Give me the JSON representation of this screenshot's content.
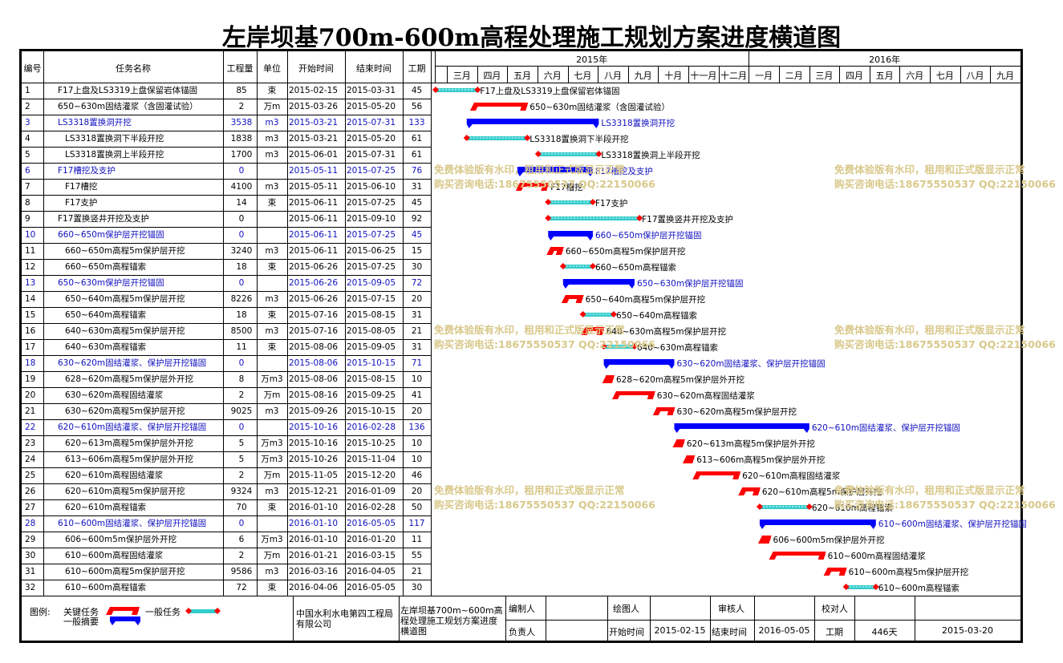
{
  "title": "左岸坝基700m-600m高程处理施工规划方案进度横道图",
  "columns": {
    "no": "编号",
    "name": "任务名称",
    "qty": "工程量",
    "unit": "单位",
    "start": "开始时间",
    "end": "结束时间",
    "dur": "工期"
  },
  "years": [
    "2015年",
    "2016年"
  ],
  "months": [
    "三月",
    "四月",
    "五月",
    "六月",
    "七月",
    "八月",
    "九月",
    "十月",
    "十一月",
    "十二月",
    "一月",
    "二月",
    "三月",
    "四月",
    "五月",
    "六月",
    "七月",
    "八月",
    "九月"
  ],
  "watermark": {
    "line1": "免费体验版有水印，租用和正式版显示正常",
    "line2": "购买咨询电话:18675550537 QQ:22150066"
  },
  "colors": {
    "critical": "#ff0000",
    "normal": "#33cccc",
    "summary": "#0000ff",
    "milestone": "#ff0000",
    "summary_text": "#1010c0"
  },
  "chart_data": {
    "type": "gantt",
    "x_axis_start": "2015-03-01",
    "x_axis_end": "2016-09-30",
    "tasks": [
      {
        "no": "1",
        "name": "F17上盘及LS3319上盘保留岩体锚固",
        "qty": "85",
        "unit": "束",
        "start": "2015-02-15",
        "end": "2015-03-31",
        "dur": "45",
        "kind": "normal",
        "indent": 0
      },
      {
        "no": "2",
        "name": "650~630m固结灌浆（含固灌试验）",
        "qty": "2",
        "unit": "万m",
        "start": "2015-03-26",
        "end": "2015-05-20",
        "dur": "56",
        "kind": "critical",
        "indent": 0
      },
      {
        "no": "3",
        "name": "LS3318置换洞开挖",
        "qty": "3538",
        "unit": "m3",
        "start": "2015-03-21",
        "end": "2015-07-31",
        "dur": "133",
        "kind": "summary",
        "indent": 0
      },
      {
        "no": "4",
        "name": "LS3318置换洞下半段开挖",
        "qty": "1838",
        "unit": "m3",
        "start": "2015-03-21",
        "end": "2015-05-20",
        "dur": "61",
        "kind": "normal",
        "indent": 1
      },
      {
        "no": "5",
        "name": "LS3318置换洞上半段开挖",
        "qty": "1700",
        "unit": "m3",
        "start": "2015-06-01",
        "end": "2015-07-31",
        "dur": "61",
        "kind": "normal",
        "indent": 1
      },
      {
        "no": "6",
        "name": "F17槽挖及支护",
        "qty": "0",
        "unit": "",
        "start": "2015-05-11",
        "end": "2015-07-25",
        "dur": "76",
        "kind": "summary",
        "indent": 0
      },
      {
        "no": "7",
        "name": "F17槽挖",
        "qty": "4100",
        "unit": "m3",
        "start": "2015-05-11",
        "end": "2015-06-10",
        "dur": "31",
        "kind": "critical",
        "indent": 1
      },
      {
        "no": "8",
        "name": "F17支护",
        "qty": "14",
        "unit": "束",
        "start": "2015-06-11",
        "end": "2015-07-25",
        "dur": "45",
        "kind": "normal",
        "indent": 1
      },
      {
        "no": "9",
        "name": "F17置换竖井开挖及支护",
        "qty": "0",
        "unit": "",
        "start": "2015-06-11",
        "end": "2015-09-10",
        "dur": "92",
        "kind": "normal",
        "indent": 0
      },
      {
        "no": "10",
        "name": "660~650m保护层开挖锚固",
        "qty": "0",
        "unit": "",
        "start": "2015-06-11",
        "end": "2015-07-25",
        "dur": "45",
        "kind": "summary",
        "indent": 0
      },
      {
        "no": "11",
        "name": "660~650m高程5m保护层开挖",
        "qty": "3240",
        "unit": "m3",
        "start": "2015-06-11",
        "end": "2015-06-25",
        "dur": "15",
        "kind": "critical",
        "indent": 1
      },
      {
        "no": "12",
        "name": "660~650m高程锚索",
        "qty": "18",
        "unit": "束",
        "start": "2015-06-26",
        "end": "2015-07-25",
        "dur": "30",
        "kind": "normal",
        "indent": 1
      },
      {
        "no": "13",
        "name": "650~630m保护层开挖锚固",
        "qty": "0",
        "unit": "",
        "start": "2015-06-26",
        "end": "2015-09-05",
        "dur": "72",
        "kind": "summary",
        "indent": 0
      },
      {
        "no": "14",
        "name": "650~640m高程5m保护层开挖",
        "qty": "8226",
        "unit": "m3",
        "start": "2015-06-26",
        "end": "2015-07-15",
        "dur": "20",
        "kind": "critical",
        "indent": 1
      },
      {
        "no": "15",
        "name": "650~640m高程锚索",
        "qty": "18",
        "unit": "束",
        "start": "2015-07-16",
        "end": "2015-08-15",
        "dur": "31",
        "kind": "normal",
        "indent": 1
      },
      {
        "no": "16",
        "name": "640~630m高程5m保护层开挖",
        "qty": "8500",
        "unit": "m3",
        "start": "2015-07-16",
        "end": "2015-08-05",
        "dur": "21",
        "kind": "critical",
        "indent": 1
      },
      {
        "no": "17",
        "name": "640~630m高程锚索",
        "qty": "11",
        "unit": "束",
        "start": "2015-08-06",
        "end": "2015-09-05",
        "dur": "31",
        "kind": "normal",
        "indent": 1
      },
      {
        "no": "18",
        "name": "630~620m固结灌浆、保护层开挖锚固",
        "qty": "0",
        "unit": "",
        "start": "2015-08-06",
        "end": "2015-10-15",
        "dur": "71",
        "kind": "summary",
        "indent": 0
      },
      {
        "no": "19",
        "name": "628~620m高程5m保护层外开挖",
        "qty": "8",
        "unit": "万m3",
        "start": "2015-08-06",
        "end": "2015-08-15",
        "dur": "10",
        "kind": "critical",
        "indent": 1
      },
      {
        "no": "20",
        "name": "630~620m高程固结灌浆",
        "qty": "2",
        "unit": "万m",
        "start": "2015-08-16",
        "end": "2015-09-25",
        "dur": "41",
        "kind": "critical",
        "indent": 1
      },
      {
        "no": "21",
        "name": "630~620m高程5m保护层开挖",
        "qty": "9025",
        "unit": "m3",
        "start": "2015-09-26",
        "end": "2015-10-15",
        "dur": "20",
        "kind": "critical",
        "indent": 1
      },
      {
        "no": "22",
        "name": "620~610m固结灌浆、保护层开挖锚固",
        "qty": "0",
        "unit": "",
        "start": "2015-10-16",
        "end": "2016-02-28",
        "dur": "136",
        "kind": "summary",
        "indent": 0
      },
      {
        "no": "23",
        "name": "620~613m高程5m保护层外开挖",
        "qty": "5",
        "unit": "万m3",
        "start": "2015-10-16",
        "end": "2015-10-25",
        "dur": "10",
        "kind": "critical",
        "indent": 1
      },
      {
        "no": "24",
        "name": "613~606m高程5m保护层外开挖",
        "qty": "5",
        "unit": "万m3",
        "start": "2015-10-26",
        "end": "2015-11-04",
        "dur": "10",
        "kind": "critical",
        "indent": 1
      },
      {
        "no": "25",
        "name": "620~610m高程固结灌浆",
        "qty": "2",
        "unit": "万m",
        "start": "2015-11-05",
        "end": "2015-12-20",
        "dur": "46",
        "kind": "critical",
        "indent": 1
      },
      {
        "no": "26",
        "name": "620~610m高程5m保护层开挖",
        "qty": "9324",
        "unit": "m3",
        "start": "2015-12-21",
        "end": "2016-01-09",
        "dur": "20",
        "kind": "critical",
        "indent": 1
      },
      {
        "no": "27",
        "name": "620~610m高程锚索",
        "qty": "70",
        "unit": "束",
        "start": "2016-01-10",
        "end": "2016-02-28",
        "dur": "50",
        "kind": "normal",
        "indent": 1
      },
      {
        "no": "28",
        "name": "610~600m固结灌浆、保护层开挖锚固",
        "qty": "0",
        "unit": "",
        "start": "2016-01-10",
        "end": "2016-05-05",
        "dur": "117",
        "kind": "summary",
        "indent": 0
      },
      {
        "no": "29",
        "name": "606~600m5m保护层外开挖",
        "qty": "6",
        "unit": "万m3",
        "start": "2016-01-10",
        "end": "2016-01-20",
        "dur": "11",
        "kind": "critical",
        "indent": 1
      },
      {
        "no": "30",
        "name": "610~600m高程固结灌浆",
        "qty": "2",
        "unit": "万m",
        "start": "2016-01-21",
        "end": "2016-03-15",
        "dur": "55",
        "kind": "critical",
        "indent": 1
      },
      {
        "no": "31",
        "name": "610~600m高程5m保护层开挖",
        "qty": "9586",
        "unit": "m3",
        "start": "2016-03-16",
        "end": "2016-04-05",
        "dur": "21",
        "kind": "critical",
        "indent": 1
      },
      {
        "no": "32",
        "name": "610~600m高程锚索",
        "qty": "72",
        "unit": "束",
        "start": "2016-04-06",
        "end": "2016-05-05",
        "dur": "30",
        "kind": "normal",
        "indent": 1
      }
    ]
  },
  "legend": {
    "label": "图例:",
    "critical": "关键任务",
    "normal": "一般任务",
    "summary": "一般摘要"
  },
  "footer": {
    "company": "中国水利水电第四工程局有限公司",
    "project": "左岸坝基700m~600m高程处理施工规划方案进度横道图",
    "editor_label": "编制人",
    "drawer_label": "绘图人",
    "reviewer_label": "审核人",
    "checker_label": "校对人",
    "owner_label": "负责人",
    "start_label": "开始时间",
    "start_value": "2015-02-15",
    "end_label": "结束时间",
    "end_value": "2016-05-05",
    "dur_label": "工期",
    "dur_value": "446天",
    "date_value": "2015-03-20"
  }
}
